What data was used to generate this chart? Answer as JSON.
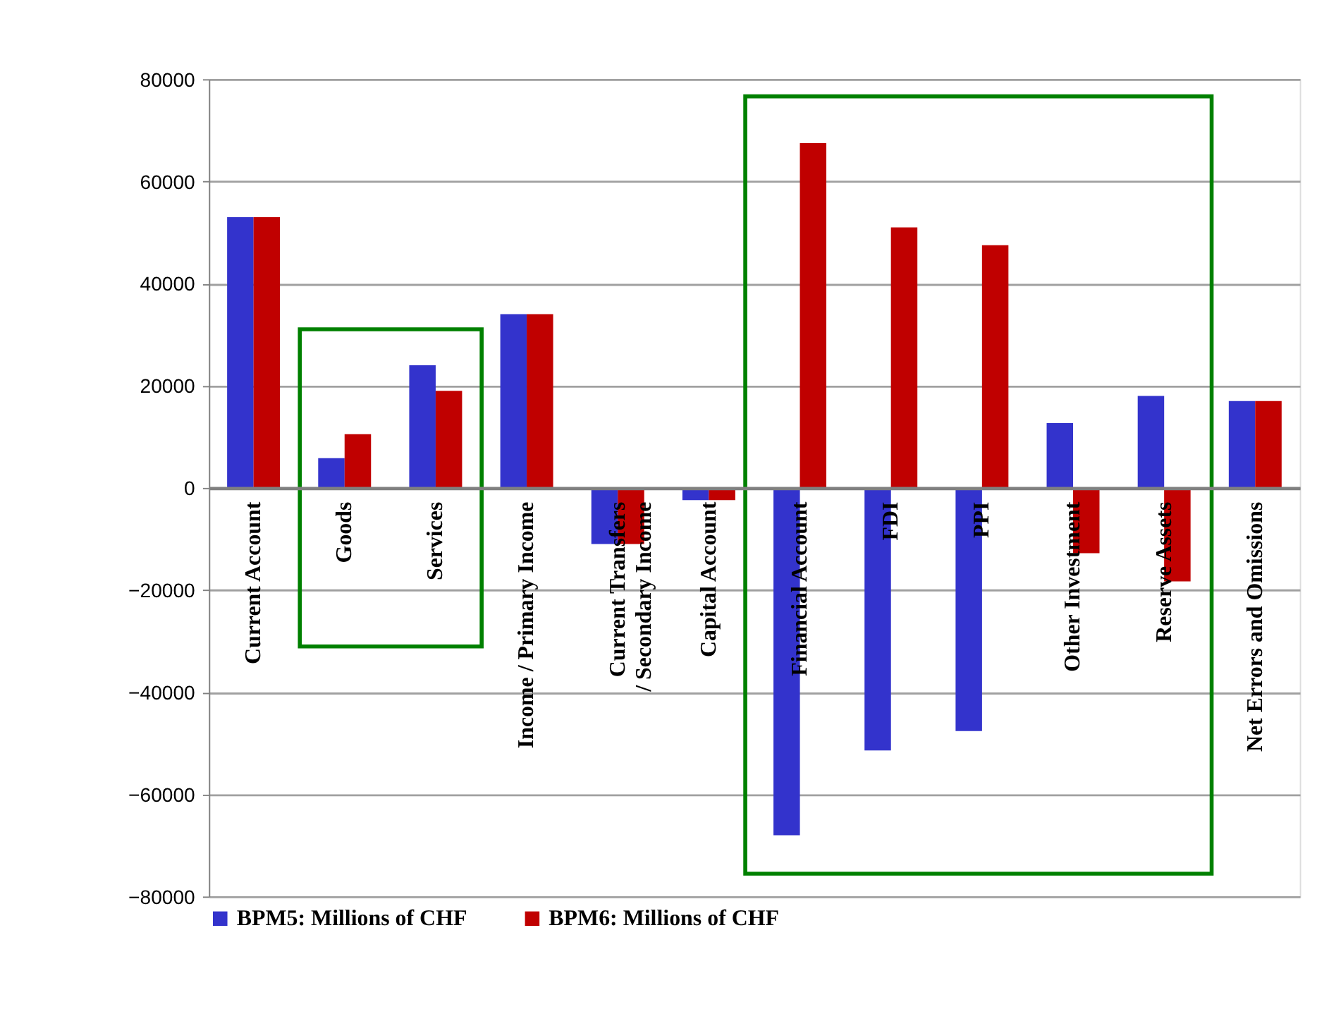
{
  "chart_data": {
    "type": "bar",
    "categories": [
      "Current Account",
      "Goods",
      "Services",
      "Income / Primary Income",
      "Current Transfers / Secondary Income",
      "Capital Account",
      "Financial Account",
      "FDI",
      "PPI",
      "Other Investment",
      "Reserve Assets",
      "Net Errors and Omissions"
    ],
    "series": [
      {
        "name": "BPM5: Millions of CHF",
        "color": "#3333cc",
        "values": [
          53000,
          5800,
          24000,
          34000,
          -11000,
          -2400,
          -68000,
          -51400,
          -47600,
          12700,
          18000,
          17000
        ]
      },
      {
        "name": "BPM6: Millions of CHF",
        "color": "#c00000",
        "values": [
          53000,
          10500,
          19000,
          34000,
          -11000,
          -2400,
          67500,
          51000,
          47500,
          -12800,
          -18300,
          17000
        ]
      }
    ],
    "ylim": [
      -80000,
      80000
    ],
    "yticks": [
      -80000,
      -60000,
      -40000,
      -20000,
      0,
      20000,
      40000,
      60000,
      80000
    ],
    "grid": "y",
    "legend": "bottom"
  }
}
